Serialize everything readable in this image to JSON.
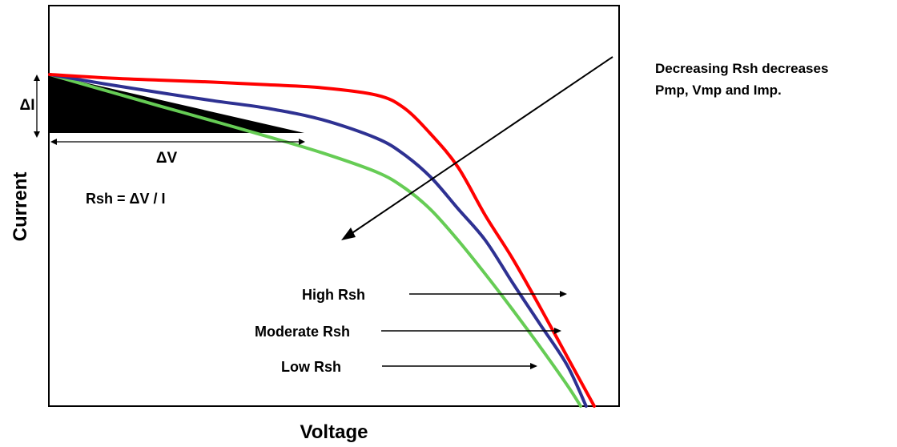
{
  "chart_data": {
    "type": "line",
    "xlabel": "Voltage",
    "ylabel": "Current",
    "grid": false,
    "axis_ticks": false,
    "series": [
      {
        "name": "High Rsh",
        "color": "#ff0000",
        "points": [
          [
            0,
            1.0
          ],
          [
            0.1,
            0.99
          ],
          [
            0.2,
            0.983
          ],
          [
            0.3,
            0.977
          ],
          [
            0.4,
            0.969
          ],
          [
            0.5,
            0.96
          ],
          [
            0.6,
            0.938
          ],
          [
            0.65,
            0.9
          ],
          [
            0.7,
            0.82
          ],
          [
            0.75,
            0.72
          ],
          [
            0.8,
            0.575
          ],
          [
            0.85,
            0.445
          ],
          [
            0.9,
            0.3
          ],
          [
            0.95,
            0.15
          ],
          [
            1.0,
            0.0
          ]
        ]
      },
      {
        "name": "Moderate Rsh",
        "color": "#2e3192",
        "points": [
          [
            0,
            1.0
          ],
          [
            0.1,
            0.972
          ],
          [
            0.2,
            0.946
          ],
          [
            0.3,
            0.921
          ],
          [
            0.4,
            0.898
          ],
          [
            0.5,
            0.864
          ],
          [
            0.6,
            0.808
          ],
          [
            0.65,
            0.76
          ],
          [
            0.7,
            0.69
          ],
          [
            0.75,
            0.595
          ],
          [
            0.8,
            0.5
          ],
          [
            0.85,
            0.372
          ],
          [
            0.9,
            0.248
          ],
          [
            0.95,
            0.124
          ],
          [
            0.985,
            0.0
          ]
        ]
      },
      {
        "name": "Low Rsh",
        "color": "#66cc55",
        "points": [
          [
            0,
            1.0
          ],
          [
            0.1,
            0.953
          ],
          [
            0.2,
            0.906
          ],
          [
            0.3,
            0.86
          ],
          [
            0.4,
            0.813
          ],
          [
            0.5,
            0.764
          ],
          [
            0.6,
            0.706
          ],
          [
            0.65,
            0.66
          ],
          [
            0.7,
            0.592
          ],
          [
            0.75,
            0.5
          ],
          [
            0.8,
            0.398
          ],
          [
            0.85,
            0.291
          ],
          [
            0.9,
            0.18
          ],
          [
            0.95,
            0.064
          ],
          [
            0.975,
            0.0
          ]
        ]
      }
    ],
    "annotations": {
      "delta_i": "ΔI",
      "delta_v": "ΔV",
      "formula": "Rsh = ΔV / I",
      "note": [
        "Decreasing Rsh decreases",
        "Pmp, Vmp and Imp."
      ],
      "curve_labels": [
        "High Rsh",
        "Moderate Rsh",
        "Low Rsh"
      ]
    },
    "colors": {
      "frame": "#000000",
      "shaded_triangle": "#000000"
    }
  }
}
